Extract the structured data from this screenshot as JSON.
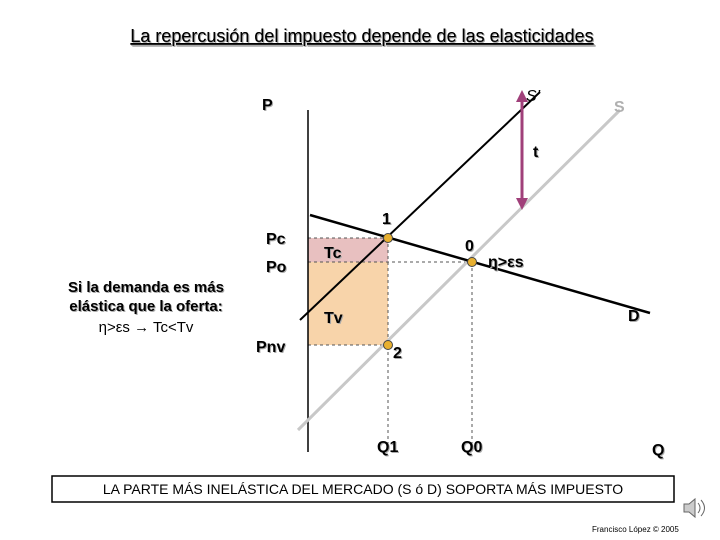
{
  "title": "La repercusión del impuesto depende de las elasticidades",
  "axes": {
    "price": "P",
    "quantity": "Q"
  },
  "curves": {
    "supply_shifted": "S’",
    "supply": "S",
    "demand": "D",
    "tax": "t"
  },
  "prices": {
    "consumer": "Pc",
    "original": "Po",
    "seller": "Pnv"
  },
  "quantities": {
    "after_tax": "Q1",
    "original": "Q0"
  },
  "points": {
    "consumer": "1",
    "original": "0",
    "seller": "2"
  },
  "areas": {
    "consumer": "Tc",
    "seller": "Tv"
  },
  "condition": "η>εs",
  "side_note": {
    "line1": "Si la demanda es más",
    "line2": "elástica que la oferta:",
    "line3": "η>εs → Tc<Tv"
  },
  "banner": "LA PARTE MÁS INELÁSTICA DEL MERCADO (S ó D) SOPORTA MÁS IMPUESTO",
  "credit": "Francisco López © 2005"
}
